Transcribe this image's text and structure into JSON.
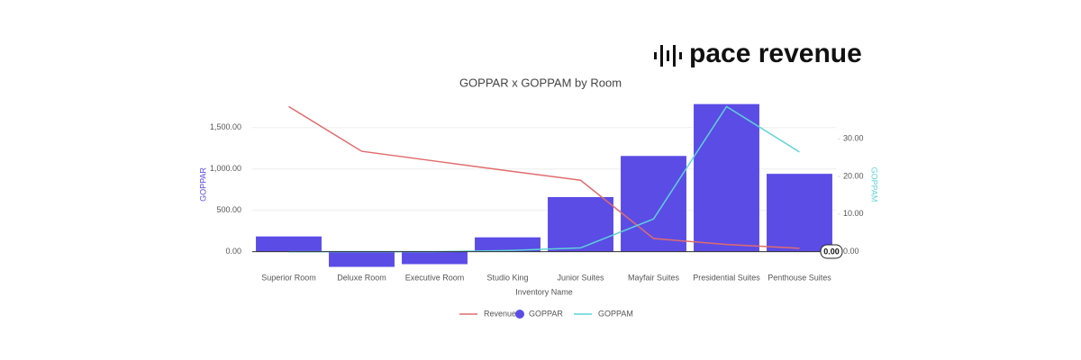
{
  "brand": "pace revenue",
  "chart_data": {
    "type": "bar",
    "title": "GOPPAR x GOPPAM by Room",
    "x_label": "Inventory Name",
    "y_label": "GOPPAR",
    "y2_label": "GOPPAM",
    "categories": [
      "Superior Room",
      "Deluxe Room",
      "Executive Room",
      "Studio King",
      "Junior Suites",
      "Mayfair Suites",
      "Presidential Suites",
      "Penthouse Suites"
    ],
    "series": [
      {
        "name": "Revenue",
        "type": "line",
        "axis": "y2",
        "color": "#e06c6c",
        "values": [
          38.6,
          26.7,
          24.1,
          21.5,
          19,
          3.5,
          1.9,
          0.9
        ]
      },
      {
        "name": "GOPPAR",
        "type": "bar",
        "color": "#5b4ce6",
        "values": [
          184,
          -184,
          -151,
          173,
          660,
          1157,
          1784,
          941
        ]
      },
      {
        "name": "GOPPAM",
        "type": "line",
        "axis": "y2",
        "color": "#5fd3d8",
        "values": [
          0,
          0,
          0,
          0.3,
          1,
          8.7,
          38.6,
          26.5
        ]
      }
    ],
    "ylim": [
      -200,
      1900
    ],
    "yticks": [
      {
        "value": 0,
        "label": "0.00"
      },
      {
        "value": 500,
        "label": "500.00"
      },
      {
        "value": 1000,
        "label": "1,000.00"
      },
      {
        "value": 1500,
        "label": "1,500.00"
      }
    ],
    "y2lim": [
      -4.4,
      41.8
    ],
    "y2ticks": [
      {
        "value": 0,
        "label": "0.00"
      },
      {
        "value": 10,
        "label": "10.00"
      },
      {
        "value": 20,
        "label": "20.00"
      },
      {
        "value": 30,
        "label": "30.00"
      }
    ],
    "annotation": "0.00",
    "grid": true,
    "legend": "bottom"
  }
}
